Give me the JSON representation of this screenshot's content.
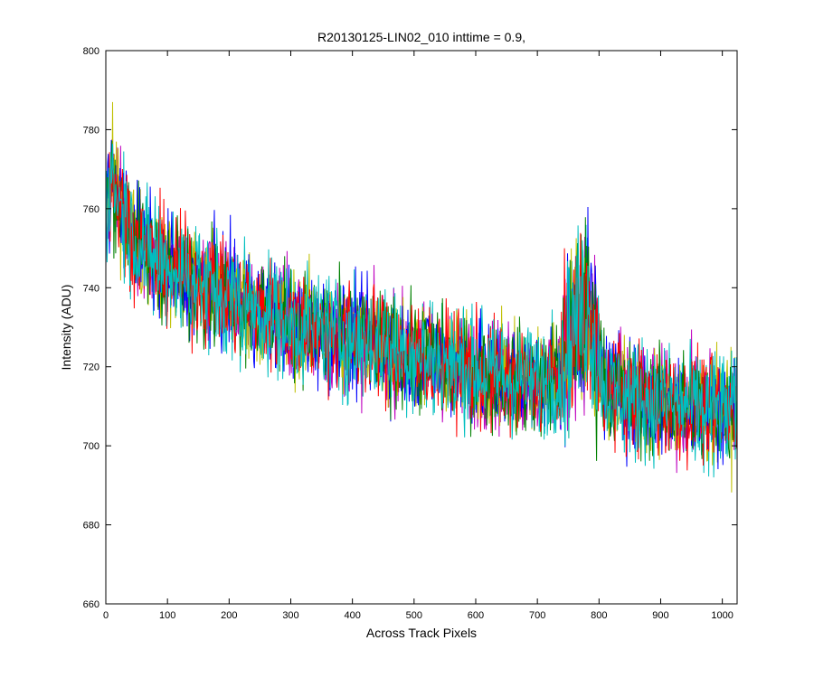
{
  "chart_data": {
    "type": "line",
    "title": "R20130125-LIN02_010 inttime = 0.9,",
    "xlabel": "Across Track Pixels",
    "ylabel": "Intensity (ADU)",
    "xlim": [
      0,
      1024
    ],
    "ylim": [
      660,
      800
    ],
    "xticks": [
      0,
      100,
      200,
      300,
      400,
      500,
      600,
      700,
      800,
      900,
      1000
    ],
    "yticks": [
      660,
      680,
      700,
      720,
      740,
      760,
      780,
      800
    ],
    "grid": false,
    "legend": "none",
    "series_colors": [
      "#00bfbf",
      "#bf00bf",
      "#bfbf00",
      "#0000ff",
      "#008000",
      "#ff0000",
      "#00bfbf"
    ],
    "series": [
      {
        "x": [
          0,
          10,
          25,
          50,
          75,
          100,
          125,
          150,
          175,
          200,
          250,
          300,
          350,
          400,
          450,
          500,
          550,
          600,
          650,
          700,
          740,
          760,
          780,
          800,
          810,
          850,
          900,
          950,
          1000,
          1023
        ],
        "values": [
          760,
          768,
          760,
          752,
          748,
          745,
          743,
          741,
          740,
          738,
          734,
          731,
          729,
          727,
          725,
          723,
          721,
          719,
          717,
          716,
          718,
          732,
          735,
          722,
          715,
          712,
          711,
          710,
          709,
          709
        ]
      }
    ]
  }
}
